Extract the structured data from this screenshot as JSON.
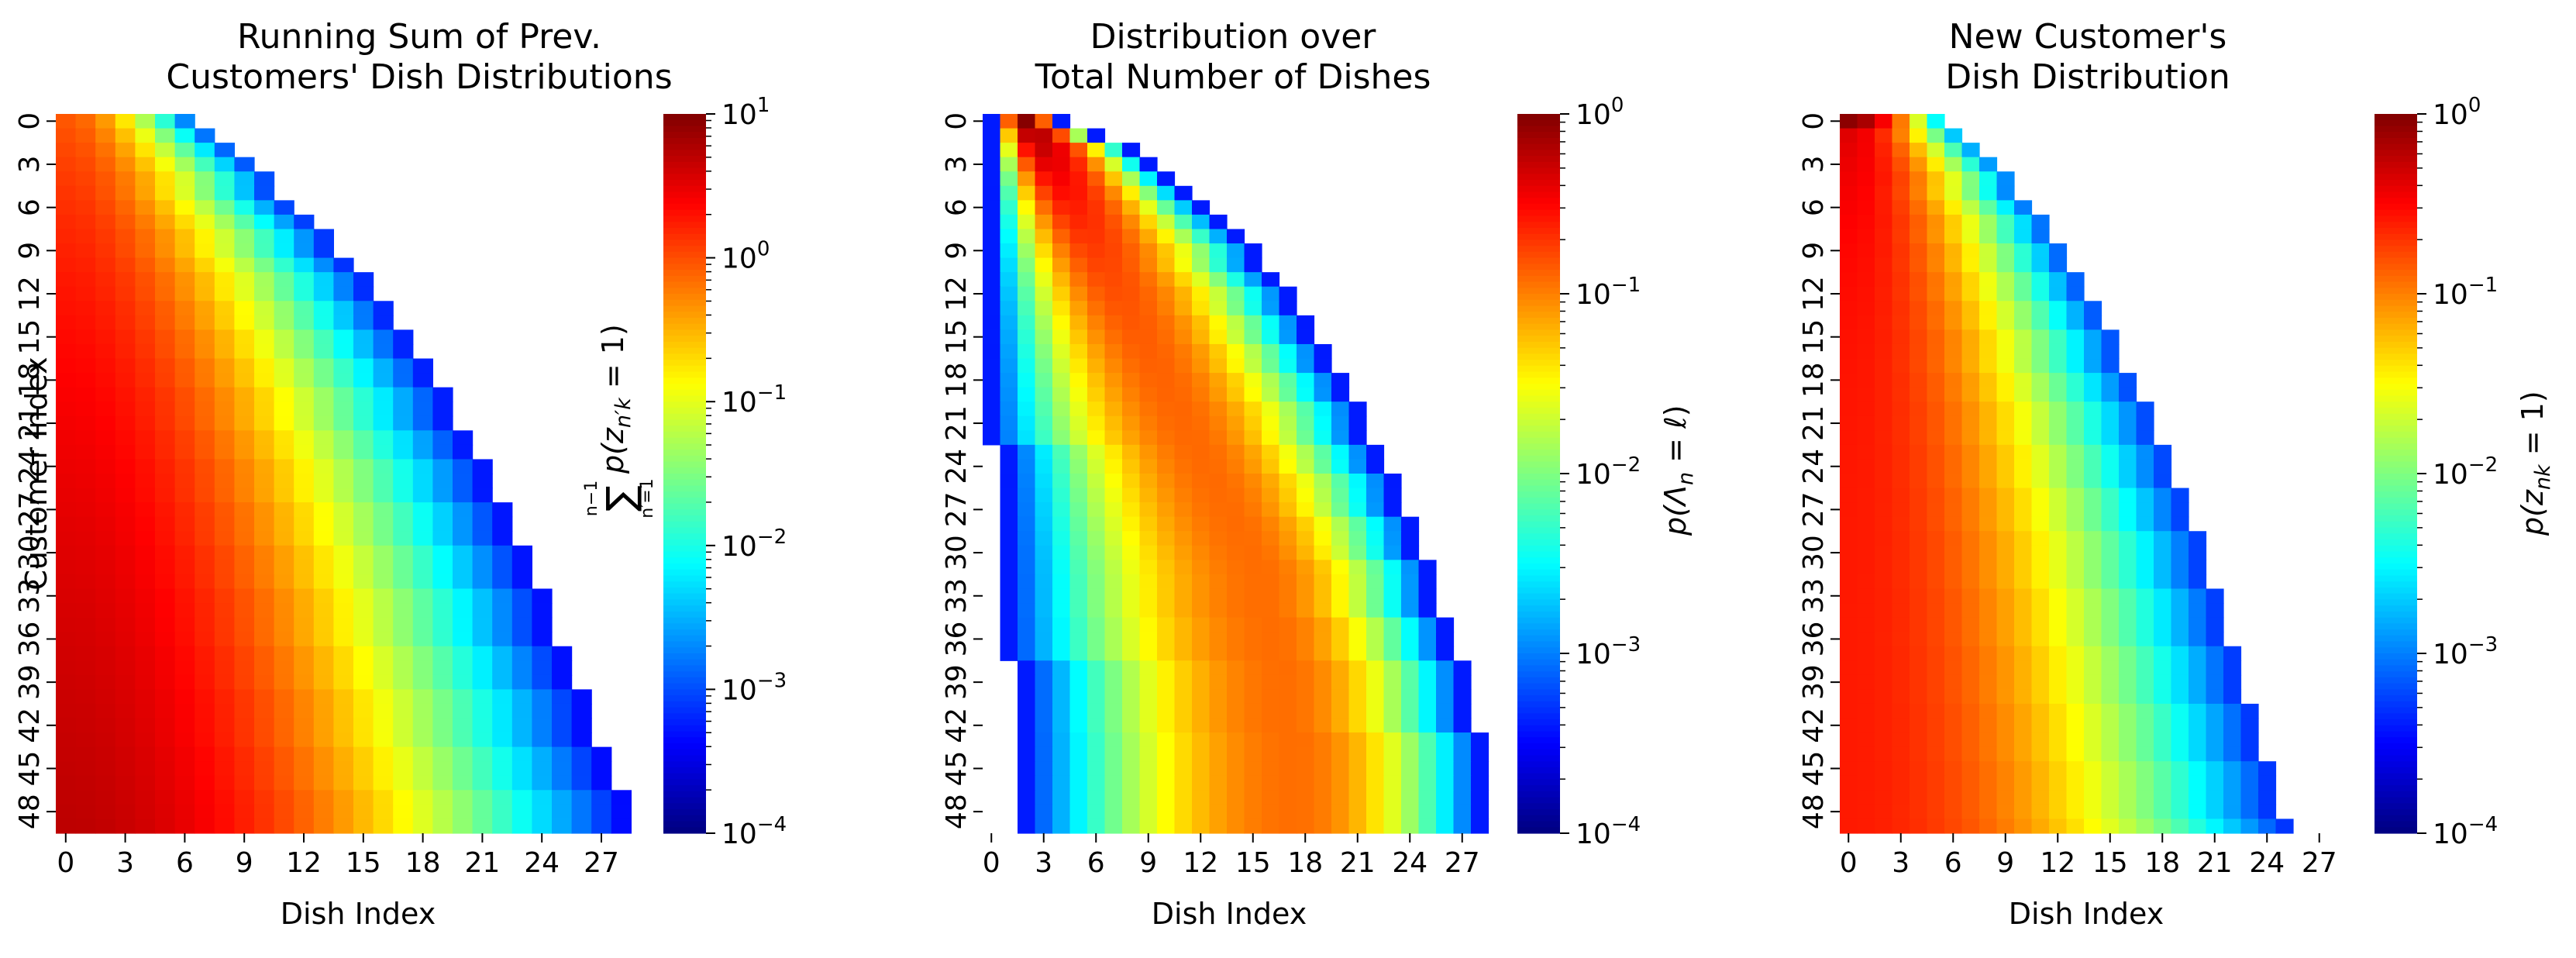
{
  "chart_data": [
    {
      "type": "heatmap",
      "title_lines": [
        "Running Sum of Prev.",
        "Customers' Dish Distributions"
      ],
      "xlabel": "Dish Index",
      "ylabel": "Customer Index",
      "x_range": [
        0,
        29
      ],
      "y_range": [
        0,
        49
      ],
      "x_ticks": [
        "0",
        "3",
        "6",
        "9",
        "12",
        "15",
        "18",
        "21",
        "24",
        "27"
      ],
      "y_ticks": [
        "0",
        "3",
        "6",
        "9",
        "12",
        "15",
        "18",
        "21",
        "24",
        "27",
        "30",
        "33",
        "36",
        "39",
        "42",
        "45",
        "48"
      ],
      "colorbar": {
        "scale": "log",
        "range": [
          0.0001,
          10
        ],
        "ticks": [
          {
            "value": 10,
            "base": "10",
            "exp": "1"
          },
          {
            "value": 1,
            "base": "10",
            "exp": "0"
          },
          {
            "value": 0.1,
            "base": "10",
            "exp": "−1"
          },
          {
            "value": 0.01,
            "base": "10",
            "exp": "−2"
          },
          {
            "value": 0.001,
            "base": "10",
            "exp": "−3"
          },
          {
            "value": 0.0001,
            "base": "10",
            "exp": "−4"
          }
        ],
        "label": "∑ p(z n′k = 1)",
        "label_sum_upper": "n−1",
        "label_sum_lower": "n′=1",
        "label_main": "p(z",
        "label_sub": "n′k",
        "label_tail": " = 1)",
        "colormap": "jet"
      },
      "row_extent": [
        7,
        8,
        9,
        10,
        11,
        11,
        12,
        13,
        14,
        14,
        15,
        16,
        16,
        17,
        17,
        18,
        18,
        19,
        19,
        20,
        20,
        20,
        21,
        21,
        22,
        22,
        22,
        23,
        23,
        23,
        24,
        24,
        24,
        25,
        25,
        25,
        25,
        26,
        26,
        26,
        27,
        27,
        27,
        27,
        28,
        28,
        28,
        29,
        29,
        29
      ],
      "value_model": "max 5.0 at customer 49 dish 0; near 1e-4 at row frontier"
    },
    {
      "type": "heatmap",
      "title_lines": [
        "Distribution over",
        "Total Number of Dishes"
      ],
      "xlabel": "Dish Index",
      "ylabel": "",
      "x_range": [
        0,
        29
      ],
      "y_range": [
        0,
        49
      ],
      "x_ticks": [
        "0",
        "3",
        "6",
        "9",
        "12",
        "15",
        "18",
        "21",
        "24",
        "27"
      ],
      "y_ticks": [
        "0",
        "3",
        "6",
        "9",
        "12",
        "15",
        "18",
        "21",
        "24",
        "27",
        "30",
        "33",
        "36",
        "39",
        "42",
        "45",
        "48"
      ],
      "colorbar": {
        "scale": "log",
        "range": [
          0.0001,
          1
        ],
        "ticks": [
          {
            "value": 1,
            "base": "10",
            "exp": "0"
          },
          {
            "value": 0.1,
            "base": "10",
            "exp": "−1"
          },
          {
            "value": 0.01,
            "base": "10",
            "exp": "−2"
          },
          {
            "value": 0.001,
            "base": "10",
            "exp": "−3"
          },
          {
            "value": 0.0001,
            "base": "10",
            "exp": "−4"
          }
        ],
        "label": "p(Λn = ℓ)",
        "label_main": "p(Λ",
        "label_sub": "n",
        "label_tail": " = ℓ)",
        "colormap": "jet"
      },
      "row_start": [
        0,
        0,
        0,
        0,
        0,
        0,
        0,
        0,
        0,
        0,
        0,
        0,
        0,
        0,
        0,
        0,
        0,
        0,
        0,
        0,
        0,
        0,
        0,
        1,
        1,
        1,
        1,
        1,
        1,
        1,
        1,
        1,
        1,
        1,
        1,
        1,
        1,
        1,
        2,
        2,
        2,
        2,
        2,
        2,
        2,
        2,
        2,
        2,
        2,
        2
      ],
      "row_extent": [
        5,
        7,
        9,
        10,
        11,
        12,
        13,
        14,
        15,
        16,
        16,
        17,
        18,
        18,
        19,
        19,
        20,
        20,
        21,
        21,
        22,
        22,
        22,
        23,
        23,
        24,
        24,
        24,
        25,
        25,
        25,
        26,
        26,
        26,
        26,
        27,
        27,
        27,
        28,
        28,
        28,
        28,
        28,
        29,
        29,
        29,
        29,
        29,
        29,
        29
      ],
      "value_model": "peaked along expected dish count, max near 1 at top-left"
    },
    {
      "type": "heatmap",
      "title_lines": [
        "New Customer's",
        "Dish Distribution"
      ],
      "xlabel": "Dish Index",
      "ylabel": "",
      "x_range": [
        0,
        29
      ],
      "y_range": [
        0,
        49
      ],
      "x_ticks": [
        "0",
        "3",
        "6",
        "9",
        "12",
        "15",
        "18",
        "21",
        "24",
        "27"
      ],
      "y_ticks": [
        "0",
        "3",
        "6",
        "9",
        "12",
        "15",
        "18",
        "21",
        "24",
        "27",
        "30",
        "33",
        "36",
        "39",
        "42",
        "45",
        "48"
      ],
      "colorbar": {
        "scale": "log",
        "range": [
          0.0001,
          1
        ],
        "ticks": [
          {
            "value": 1,
            "base": "10",
            "exp": "0"
          },
          {
            "value": 0.1,
            "base": "10",
            "exp": "−1"
          },
          {
            "value": 0.01,
            "base": "10",
            "exp": "−2"
          },
          {
            "value": 0.001,
            "base": "10",
            "exp": "−3"
          },
          {
            "value": 0.0001,
            "base": "10",
            "exp": "−4"
          }
        ],
        "label": "p(znk = 1)",
        "label_main": "p(z",
        "label_sub": "nk",
        "label_tail": " = 1)",
        "colormap": "jet"
      },
      "row_extent": [
        6,
        7,
        8,
        9,
        10,
        10,
        11,
        12,
        12,
        13,
        13,
        14,
        14,
        15,
        15,
        16,
        16,
        16,
        17,
        17,
        18,
        18,
        18,
        19,
        19,
        19,
        20,
        20,
        20,
        21,
        21,
        21,
        21,
        22,
        22,
        22,
        22,
        23,
        23,
        23,
        23,
        24,
        24,
        24,
        24,
        25,
        25,
        25,
        25,
        26
      ],
      "value_model": "max near 1 at customer 0 dish 0; decays with dish index"
    }
  ]
}
